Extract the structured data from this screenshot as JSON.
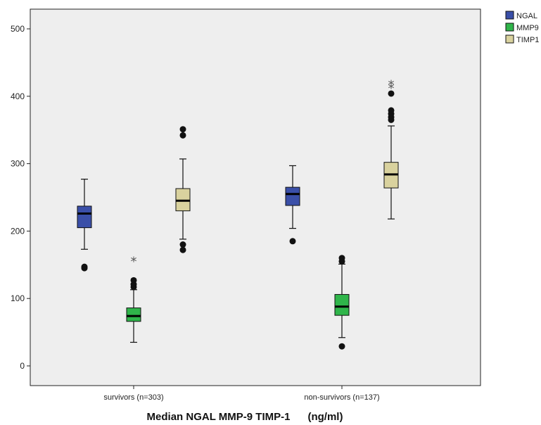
{
  "chart_data": {
    "type": "box",
    "xlabel": "Median NGAL MMP-9 TIMP-1      (ng/ml)",
    "ylabel": "",
    "ylim": [
      -30,
      530
    ],
    "yticks": [
      0,
      100,
      200,
      300,
      400,
      500
    ],
    "grid": false,
    "legend_position": "top-right",
    "categories": [
      "survivors (n=303)",
      "non-survivors (n=137)"
    ],
    "series": [
      {
        "name": "NGAL",
        "color": "#3a4fa8",
        "boxes": [
          {
            "min": 173,
            "q1": 205,
            "median": 226,
            "q3": 237,
            "max": 277,
            "outliers": [
              145,
              147
            ],
            "extremes": []
          },
          {
            "min": 204,
            "q1": 238,
            "median": 255,
            "q3": 265,
            "max": 297,
            "outliers": [
              185
            ],
            "extremes": []
          }
        ]
      },
      {
        "name": "MMP9",
        "color": "#2fb54a",
        "boxes": [
          {
            "min": 35,
            "q1": 66,
            "median": 74,
            "q3": 86,
            "max": 113,
            "outliers": [
              117,
              121,
              127
            ],
            "extremes": [
              157
            ]
          },
          {
            "min": 42,
            "q1": 75,
            "median": 88,
            "q3": 106,
            "max": 151,
            "outliers": [
              29,
              155,
              160
            ],
            "extremes": []
          }
        ]
      },
      {
        "name": "TIMP1",
        "color": "#d9d29e",
        "boxes": [
          {
            "min": 188,
            "q1": 230,
            "median": 245,
            "q3": 263,
            "max": 307,
            "outliers": [
              172,
              180,
              342,
              351
            ],
            "extremes": []
          },
          {
            "min": 218,
            "q1": 264,
            "median": 284,
            "q3": 302,
            "max": 356,
            "outliers": [
              365,
              369,
              374,
              379,
              404
            ],
            "extremes": [
              414,
              419
            ]
          }
        ]
      }
    ]
  }
}
